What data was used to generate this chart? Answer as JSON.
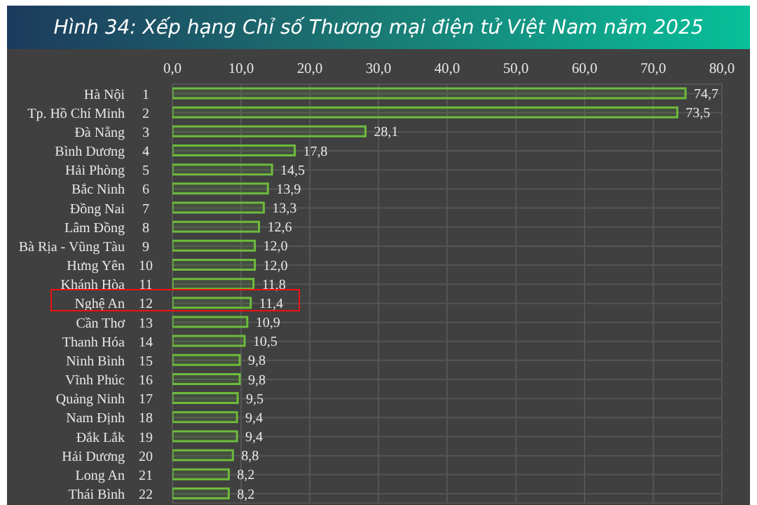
{
  "chart_data": {
    "type": "bar",
    "orientation": "horizontal",
    "title": "Hình 34: Xếp hạng Chỉ số Thương mại điện tử Việt Nam năm 2025",
    "categories": [
      "Hà Nội 1",
      "Tp. Hồ Chí Minh 2",
      "Đà Nẵng 3",
      "Bình Dương 4",
      "Hải Phòng 5",
      "Bắc Ninh 6",
      "Đồng Nai 7",
      "Lâm Đồng 8",
      "Bà Rịa - Vũng Tàu 9",
      "Hưng Yên 10",
      "Khánh Hòa 11",
      "Nghệ An 12",
      "Cần Thơ 13",
      "Thanh Hóa 14",
      "Ninh Bình 15",
      "Vĩnh Phúc 16",
      "Quảng Ninh 17",
      "Nam Định 18",
      "Đắk Lắk 19",
      "Hải Dương 20",
      "Long An 21",
      "Thái Bình 22"
    ],
    "values": [
      74.7,
      73.5,
      28.1,
      17.8,
      14.5,
      13.9,
      13.3,
      12.6,
      12.0,
      12.0,
      11.8,
      11.4,
      10.9,
      10.5,
      9.8,
      9.8,
      9.5,
      9.4,
      9.4,
      8.8,
      8.2,
      8.2
    ],
    "value_labels": [
      "74,7",
      "73,5",
      "28,1",
      "17,8",
      "14,5",
      "13,9",
      "13,3",
      "12,6",
      "12,0",
      "12,0",
      "11,8",
      "11,4",
      "10,9",
      "10,5",
      "9,8",
      "9,8",
      "9,5",
      "9,4",
      "9,4",
      "8,8",
      "8,2",
      "8,2"
    ],
    "color": "#6dbb3c",
    "xlim": [
      0,
      80
    ],
    "xticks": [
      {
        "value": 0,
        "label": "0,0"
      },
      {
        "value": 10,
        "label": "10,0"
      },
      {
        "value": 20,
        "label": "20,0"
      },
      {
        "value": 30,
        "label": "30,0"
      },
      {
        "value": 40,
        "label": "40,0"
      },
      {
        "value": 50,
        "label": "50,0"
      },
      {
        "value": 60,
        "label": "60,0"
      },
      {
        "value": 70,
        "label": "70,0"
      },
      {
        "value": 80,
        "label": "80,0"
      }
    ],
    "grid": true
  }
}
